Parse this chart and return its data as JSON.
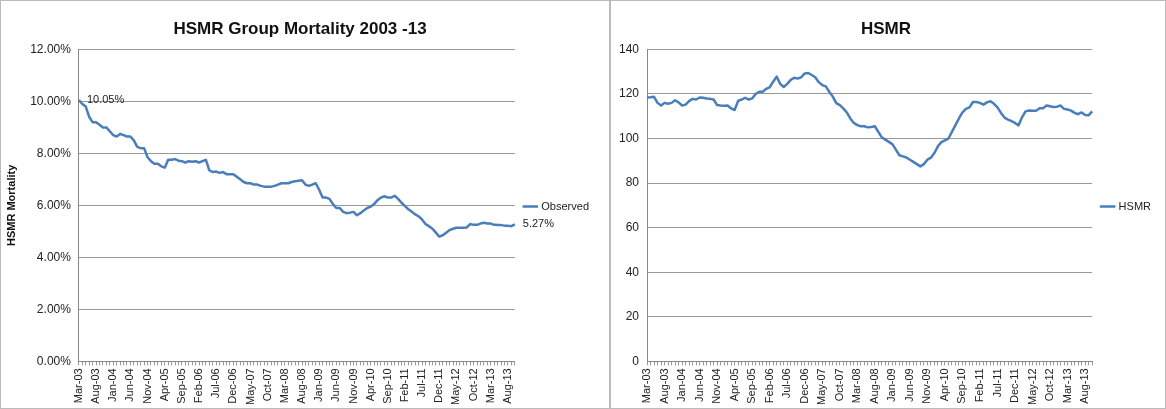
{
  "chart_data": [
    {
      "type": "line",
      "title": "HSMR Group Mortality 2003 -13",
      "ylabel": "HSMR Mortality",
      "categories": [
        "Mar-03",
        null,
        null,
        null,
        null,
        "Aug-03",
        null,
        null,
        null,
        null,
        "Jan-04",
        null,
        null,
        null,
        null,
        "Jun-04",
        null,
        null,
        null,
        null,
        "Nov-04",
        null,
        null,
        null,
        null,
        "Apr-05",
        null,
        null,
        null,
        null,
        "Sep-05",
        null,
        null,
        null,
        null,
        "Feb-06",
        null,
        null,
        null,
        null,
        "Jul-06",
        null,
        null,
        null,
        null,
        "Dec-06",
        null,
        null,
        null,
        null,
        "May-07",
        null,
        null,
        null,
        null,
        "Oct-07",
        null,
        null,
        null,
        null,
        "Mar-08",
        null,
        null,
        null,
        null,
        "Aug-08",
        null,
        null,
        null,
        null,
        "Jan-09",
        null,
        null,
        null,
        null,
        "Jun-09",
        null,
        null,
        null,
        null,
        "Nov-09",
        null,
        null,
        null,
        null,
        "Apr-10",
        null,
        null,
        null,
        null,
        "Sep-10",
        null,
        null,
        null,
        null,
        "Feb-11",
        null,
        null,
        null,
        null,
        "Jul-11",
        null,
        null,
        null,
        null,
        "Dec-11",
        null,
        null,
        null,
        null,
        "May-12",
        null,
        null,
        null,
        null,
        "Oct-12",
        null,
        null,
        null,
        null,
        "Mar-13",
        null,
        null,
        null,
        null,
        "Aug-13",
        null,
        null
      ],
      "series": [
        {
          "name": "Observed",
          "color": "#4a7ebb",
          "values": [
            10.05,
            9.9,
            9.8,
            9.4,
            9.2,
            9.2,
            9.1,
            9.0,
            9.0,
            8.85,
            8.7,
            8.65,
            8.75,
            8.7,
            8.65,
            8.65,
            8.5,
            8.25,
            8.2,
            8.2,
            7.85,
            7.7,
            7.6,
            7.6,
            7.5,
            7.45,
            7.75,
            7.75,
            7.78,
            7.72,
            7.7,
            7.65,
            7.7,
            7.68,
            7.7,
            7.65,
            7.7,
            7.75,
            7.35,
            7.28,
            7.3,
            7.25,
            7.28,
            7.2,
            7.2,
            7.2,
            7.1,
            7.0,
            6.9,
            6.85,
            6.85,
            6.8,
            6.8,
            6.75,
            6.72,
            6.72,
            6.72,
            6.75,
            6.8,
            6.85,
            6.85,
            6.85,
            6.9,
            6.93,
            6.95,
            6.97,
            6.8,
            6.75,
            6.8,
            6.85,
            6.6,
            6.3,
            6.3,
            6.25,
            6.05,
            5.9,
            5.9,
            5.75,
            5.7,
            5.72,
            5.75,
            5.62,
            5.7,
            5.8,
            5.9,
            5.95,
            6.05,
            6.2,
            6.3,
            6.35,
            6.3,
            6.3,
            6.37,
            6.25,
            6.1,
            5.97,
            5.85,
            5.75,
            5.65,
            5.58,
            5.45,
            5.28,
            5.2,
            5.1,
            4.95,
            4.8,
            4.85,
            4.95,
            5.05,
            5.1,
            5.14,
            5.14,
            5.14,
            5.15,
            5.28,
            5.25,
            5.25,
            5.3,
            5.33,
            5.3,
            5.3,
            5.25,
            5.24,
            5.24,
            5.22,
            5.22,
            5.2,
            5.27
          ],
          "value_labels": [
            "10.05%",
            null,
            null,
            null,
            null,
            null,
            null,
            null,
            null,
            null,
            null,
            null,
            null,
            null,
            null,
            null,
            null,
            null,
            null,
            null,
            null,
            null,
            null,
            null,
            null,
            null,
            null,
            null,
            null,
            null,
            null,
            null,
            null,
            null,
            null,
            null,
            null,
            null,
            null,
            null,
            null,
            null,
            null,
            null,
            null,
            null,
            null,
            null,
            null,
            null,
            null,
            null,
            null,
            null,
            null,
            null,
            null,
            null,
            null,
            null,
            null,
            null,
            null,
            null,
            null,
            null,
            null,
            null,
            null,
            null,
            null,
            null,
            null,
            null,
            null,
            null,
            null,
            null,
            null,
            null,
            null,
            null,
            null,
            null,
            null,
            null,
            null,
            null,
            null,
            null,
            null,
            null,
            null,
            null,
            null,
            null,
            null,
            null,
            null,
            null,
            null,
            null,
            null,
            null,
            null,
            null,
            null,
            null,
            null,
            null,
            null,
            null,
            null,
            null,
            null,
            null,
            null,
            null,
            null,
            null,
            null,
            null,
            null,
            null,
            null,
            null,
            null,
            "5.27%"
          ]
        }
      ],
      "ylim": [
        0,
        12
      ],
      "yticks": [
        {
          "value": 0,
          "label": "0.00%"
        },
        {
          "value": 2,
          "label": "2.00%"
        },
        {
          "value": 4,
          "label": "4.00%"
        },
        {
          "value": 6,
          "label": "6.00%"
        },
        {
          "value": 8,
          "label": "8.00%"
        },
        {
          "value": 10,
          "label": "10.00%"
        },
        {
          "value": 12,
          "label": "12.00%"
        }
      ],
      "grid": "y",
      "legend": "right",
      "marker": "none"
    },
    {
      "type": "line",
      "title": "HSMR",
      "categories": [
        "Mar-03",
        null,
        null,
        null,
        null,
        "Aug-03",
        null,
        null,
        null,
        null,
        "Jan-04",
        null,
        null,
        null,
        null,
        "Jun-04",
        null,
        null,
        null,
        null,
        "Nov-04",
        null,
        null,
        null,
        null,
        "Apr-05",
        null,
        null,
        null,
        null,
        "Sep-05",
        null,
        null,
        null,
        null,
        "Feb-06",
        null,
        null,
        null,
        null,
        "Jul-06",
        null,
        null,
        null,
        null,
        "Dec-06",
        null,
        null,
        null,
        null,
        "May-07",
        null,
        null,
        null,
        null,
        "Oct-07",
        null,
        null,
        null,
        null,
        "Mar-08",
        null,
        null,
        null,
        null,
        "Aug-08",
        null,
        null,
        null,
        null,
        "Jan-09",
        null,
        null,
        null,
        null,
        "Jun-09",
        null,
        null,
        null,
        null,
        "Nov-09",
        null,
        null,
        null,
        null,
        "Apr-10",
        null,
        null,
        null,
        null,
        "Sep-10",
        null,
        null,
        null,
        null,
        "Feb-11",
        null,
        null,
        null,
        null,
        "Jul-11",
        null,
        null,
        null,
        null,
        "Dec-11",
        null,
        null,
        null,
        null,
        "May-12",
        null,
        null,
        null,
        null,
        "Oct-12",
        null,
        null,
        null,
        null,
        "Mar-13",
        null,
        null,
        null,
        null,
        "Aug-13",
        null,
        null
      ],
      "series": [
        {
          "name": "HSMR",
          "color": "#4a7ebb",
          "values": [
            118.4,
            118.5,
            118.7,
            116,
            114.8,
            116,
            115.6,
            116,
            117.2,
            116.2,
            114.8,
            115.2,
            116.8,
            117.8,
            117.5,
            118.4,
            118.3,
            118,
            117.8,
            117.5,
            115,
            114.8,
            114.7,
            114.8,
            113.5,
            112.8,
            116.9,
            117.5,
            118.3,
            117.5,
            118,
            120,
            121,
            121,
            122.3,
            123,
            125.5,
            127.8,
            124.5,
            123.1,
            124.5,
            126.3,
            127.3,
            126.9,
            127.5,
            129.2,
            129.4,
            128.5,
            127.5,
            125.3,
            124,
            123.4,
            121,
            118.8,
            115.9,
            115,
            113.5,
            111.7,
            109,
            107,
            106,
            105.5,
            105.5,
            105,
            105.2,
            105.5,
            103,
            100.5,
            99.5,
            98.5,
            97.5,
            95,
            92.5,
            92,
            91.5,
            90.5,
            89.5,
            88.5,
            87.5,
            88.5,
            90.5,
            91.4,
            93.5,
            96.5,
            98.4,
            99.2,
            100,
            103,
            106,
            109,
            111.7,
            113.3,
            114,
            116.4,
            116.4,
            116,
            115.2,
            116.2,
            116.7,
            115.6,
            114,
            111.5,
            109.4,
            108.5,
            107.8,
            107,
            105.9,
            109.5,
            112.2,
            112.6,
            112.5,
            112.5,
            113.6,
            113.6,
            114.8,
            114.5,
            114.1,
            114.3,
            114.8,
            113.3,
            113,
            112.5,
            111.5,
            110.9,
            111.7,
            110.6,
            110.4,
            112.2
          ]
        }
      ],
      "ylim": [
        0,
        140
      ],
      "yticks": [
        0,
        20,
        40,
        60,
        80,
        100,
        120,
        140
      ],
      "grid": "y",
      "legend": "right",
      "marker": "none"
    }
  ]
}
